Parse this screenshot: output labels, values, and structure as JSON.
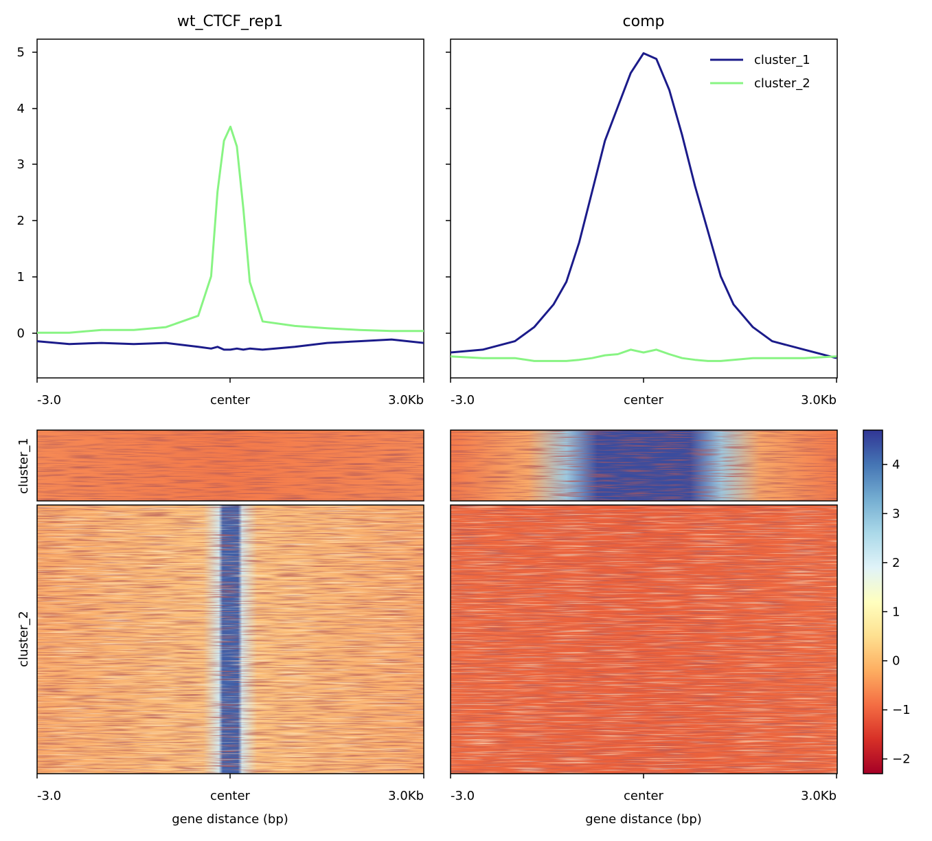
{
  "chart_data": [
    {
      "type": "line",
      "title": "wt_CTCF_rep1",
      "xticks": [
        "-3.0",
        "center",
        "3.0Kb"
      ],
      "xrange": [
        -3000,
        3000
      ],
      "ylim": [
        -0.8,
        5.2
      ],
      "yticks": [
        "0",
        "1",
        "2",
        "3",
        "4",
        "5"
      ],
      "x": [
        -3000,
        -2500,
        -2000,
        -1500,
        -1000,
        -500,
        -300,
        -200,
        -100,
        0,
        100,
        200,
        300,
        500,
        1000,
        1500,
        2000,
        2500,
        3000
      ],
      "series": [
        {
          "name": "cluster_1",
          "color": "#1b1b8a",
          "values": [
            -0.15,
            -0.2,
            -0.18,
            -0.2,
            -0.18,
            -0.25,
            -0.28,
            -0.25,
            -0.3,
            -0.3,
            -0.28,
            -0.3,
            -0.28,
            -0.3,
            -0.25,
            -0.18,
            -0.15,
            -0.12,
            -0.18
          ]
        },
        {
          "name": "cluster_2",
          "color": "#88f483",
          "values": [
            0.0,
            0.0,
            0.05,
            0.05,
            0.1,
            0.3,
            1.0,
            2.5,
            3.4,
            3.65,
            3.3,
            2.2,
            0.9,
            0.2,
            0.12,
            0.08,
            0.05,
            0.03,
            0.03
          ]
        }
      ]
    },
    {
      "type": "line",
      "title": "comp",
      "xticks": [
        "-3.0",
        "center",
        "3.0Kb"
      ],
      "xrange": [
        -3000,
        3000
      ],
      "ylim": [
        -0.8,
        5.2
      ],
      "legend": {
        "position": "top-right",
        "entries": [
          "cluster_1",
          "cluster_2"
        ]
      },
      "x": [
        -3000,
        -2500,
        -2000,
        -1700,
        -1400,
        -1200,
        -1000,
        -800,
        -600,
        -400,
        -200,
        0,
        200,
        400,
        600,
        800,
        1000,
        1200,
        1400,
        1700,
        2000,
        2500,
        3000
      ],
      "series": [
        {
          "name": "cluster_1",
          "color": "#1b1b8a",
          "values": [
            -0.35,
            -0.3,
            -0.15,
            0.1,
            0.5,
            0.9,
            1.6,
            2.5,
            3.4,
            4.0,
            4.6,
            4.95,
            4.85,
            4.3,
            3.5,
            2.6,
            1.8,
            1.0,
            0.5,
            0.1,
            -0.15,
            -0.3,
            -0.45
          ]
        },
        {
          "name": "cluster_2",
          "color": "#88f483",
          "values": [
            -0.42,
            -0.45,
            -0.45,
            -0.5,
            -0.5,
            -0.5,
            -0.48,
            -0.45,
            -0.4,
            -0.38,
            -0.3,
            -0.35,
            -0.3,
            -0.38,
            -0.45,
            -0.48,
            -0.5,
            -0.5,
            -0.48,
            -0.45,
            -0.45,
            -0.45,
            -0.42
          ]
        }
      ]
    },
    {
      "type": "heatmap",
      "panel": "wt_CTCF_rep1",
      "row_groups": [
        "cluster_1",
        "cluster_2"
      ],
      "xticks": [
        "-3.0",
        "center",
        "3.0Kb"
      ],
      "xlabel": "gene distance (bp)",
      "summary": {
        "cluster_1": "uniform low signal across window",
        "cluster_2": "narrow high-signal band at center"
      }
    },
    {
      "type": "heatmap",
      "panel": "comp",
      "row_groups": [
        "cluster_1",
        "cluster_2"
      ],
      "xticks": [
        "-3.0",
        "center",
        "3.0Kb"
      ],
      "xlabel": "gene distance (bp)",
      "summary": {
        "cluster_1": "broad high-signal region centered, widening at top",
        "cluster_2": "uniform low signal across window"
      }
    }
  ],
  "colorbar": {
    "cmap": "RdYlBu",
    "range": [
      -2.3,
      4.7
    ],
    "ticks": [
      "4",
      "3",
      "2",
      "1",
      "0",
      "−1",
      "−2"
    ],
    "tick_values": [
      4,
      3,
      2,
      1,
      0,
      -1,
      -2
    ],
    "colors": [
      "#a50026",
      "#d73027",
      "#f46d43",
      "#fdae61",
      "#fee090",
      "#ffffbf",
      "#e0f3f8",
      "#abd9e9",
      "#74add1",
      "#4575b4",
      "#313695"
    ]
  }
}
